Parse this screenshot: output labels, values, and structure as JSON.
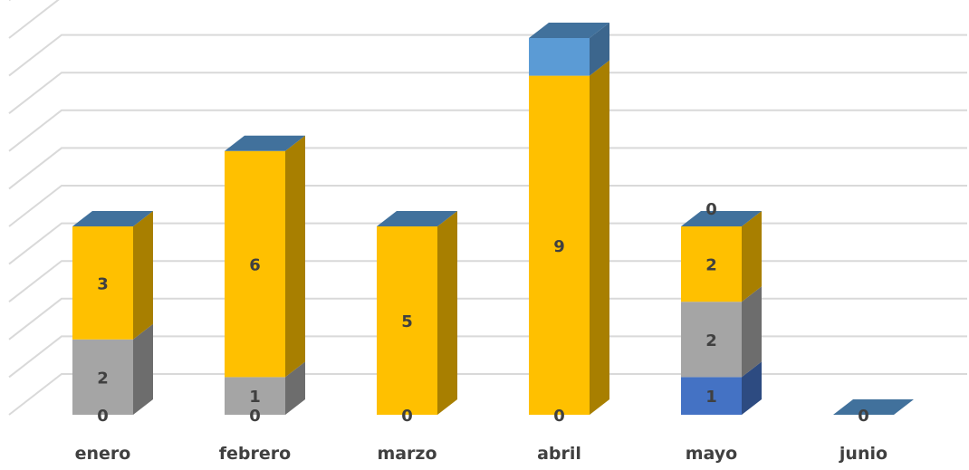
{
  "chart_data": {
    "type": "bar",
    "stacked": true,
    "three_d": true,
    "categories": [
      "enero",
      "febrero",
      "marzo",
      "abril",
      "mayo",
      "junio"
    ],
    "series": [
      {
        "values": [
          0,
          0,
          0,
          0,
          1,
          0
        ],
        "labels": [
          "0",
          "0",
          "0",
          "0",
          "1",
          "0"
        ],
        "color": "#4472C4"
      },
      {
        "values": [
          2,
          1,
          0,
          0,
          2,
          0
        ],
        "labels": [
          "2",
          "1",
          null,
          null,
          "2",
          null
        ],
        "color": "#A5A5A5"
      },
      {
        "values": [
          3,
          6,
          5,
          9,
          2,
          0
        ],
        "labels": [
          "3",
          "6",
          "5",
          "9",
          "2",
          null
        ],
        "color": "#FFC000"
      },
      {
        "values": [
          0,
          0,
          0,
          1,
          0,
          0
        ],
        "labels": [
          null,
          null,
          null,
          null,
          "0",
          null
        ],
        "color": "#5B9BD5"
      }
    ],
    "title": "",
    "xlabel": "",
    "ylabel": "",
    "ylim": [
      0,
      11
    ],
    "grid": true,
    "legend": "none",
    "ytick_labels_shown": false
  }
}
